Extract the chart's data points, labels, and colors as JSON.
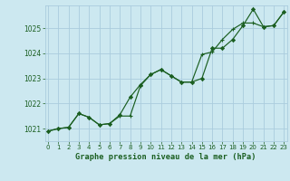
{
  "title": "Graphe pression niveau de la mer (hPa)",
  "background_color": "#cce8f0",
  "grid_color": "#aaccdd",
  "line_color": "#1a5e20",
  "x_values": [
    0,
    1,
    2,
    3,
    4,
    5,
    6,
    7,
    8,
    9,
    10,
    11,
    12,
    13,
    14,
    15,
    16,
    17,
    18,
    19,
    20,
    21,
    22,
    23
  ],
  "line1_y": [
    1020.9,
    1021.0,
    1021.05,
    1021.6,
    1021.45,
    1021.15,
    1021.2,
    1021.55,
    1022.25,
    1022.75,
    1023.15,
    1023.35,
    1023.1,
    1022.85,
    1022.85,
    1023.0,
    1024.2,
    1024.2,
    1024.55,
    1025.1,
    1025.75,
    1025.05,
    1025.1,
    1025.65
  ],
  "line2_y": [
    1020.9,
    1021.0,
    1021.05,
    1021.6,
    1021.45,
    1021.15,
    1021.2,
    1021.5,
    1021.5,
    1022.7,
    1023.15,
    1023.35,
    1023.1,
    1022.85,
    1022.85,
    1023.95,
    1024.05,
    1024.55,
    1024.95,
    1025.2,
    1025.2,
    1025.05,
    1025.1,
    1025.65
  ],
  "ylim": [
    1020.5,
    1025.9
  ],
  "yticks": [
    1021,
    1022,
    1023,
    1024,
    1025
  ],
  "xlim": [
    -0.3,
    23.3
  ],
  "xticks": [
    0,
    1,
    2,
    3,
    4,
    5,
    6,
    7,
    8,
    9,
    10,
    11,
    12,
    13,
    14,
    15,
    16,
    17,
    18,
    19,
    20,
    21,
    22,
    23
  ]
}
